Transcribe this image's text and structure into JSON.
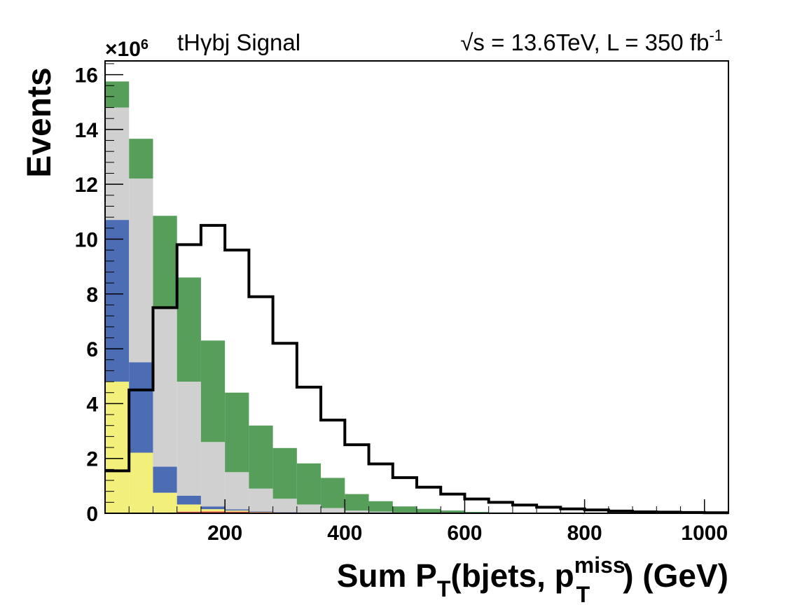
{
  "chart_data": {
    "type": "bar",
    "stacked": true,
    "title": "tHγbj Signal",
    "energy_prefix": "√s",
    "energy_text": " = 13.6TeV, L = 350 fb",
    "lumi_exp": "-1",
    "exponent_label": "×10",
    "exponent_power": "6",
    "ylabel": "Events",
    "xlabel_main": "Sum P",
    "xlabel_sub_T": "T",
    "xlabel_mid": "(bjets, p",
    "xlabel_sup": "miss",
    "xlabel_sub_T2": "T",
    "xlabel_tail": ") (GeV)",
    "xlim": [
      0,
      1040
    ],
    "ylim": [
      0,
      16.5
    ],
    "bin_edges": [
      0,
      40,
      80,
      120,
      160,
      200,
      240,
      280,
      320,
      360,
      400,
      440,
      480,
      520,
      560,
      600,
      640,
      680,
      720,
      760,
      800,
      840,
      880,
      920,
      960,
      1000,
      1040
    ],
    "x_ticks": [
      200,
      400,
      600,
      800,
      1000
    ],
    "y_ticks": [
      0,
      2,
      4,
      6,
      8,
      10,
      12,
      14,
      16
    ],
    "stack_series": [
      {
        "name": "red",
        "color": "#e3544c",
        "values": [
          0,
          0.01,
          0.03,
          0.06,
          0.07,
          0.06,
          0.04,
          0.03,
          0.02,
          0.01,
          0,
          0,
          0,
          0,
          0,
          0,
          0,
          0,
          0,
          0,
          0,
          0,
          0,
          0,
          0,
          0
        ]
      },
      {
        "name": "yellow",
        "color": "#f2f07a",
        "values": [
          4.8,
          2.2,
          0.72,
          0.26,
          0.08,
          0.04,
          0.01,
          0,
          0,
          0,
          0,
          0,
          0,
          0,
          0,
          0,
          0,
          0,
          0,
          0,
          0,
          0,
          0,
          0,
          0,
          0
        ]
      },
      {
        "name": "blue",
        "color": "#4c6cb3",
        "values": [
          5.9,
          3.3,
          0.95,
          0.32,
          0.1,
          0.04,
          0.02,
          0.01,
          0,
          0,
          0,
          0,
          0,
          0,
          0,
          0,
          0,
          0,
          0,
          0,
          0,
          0,
          0,
          0,
          0,
          0
        ]
      },
      {
        "name": "grey",
        "color": "#d0d0d0",
        "values": [
          4.1,
          6.7,
          5.8,
          4.16,
          2.35,
          1.36,
          0.83,
          0.49,
          0.3,
          0.18,
          0.1,
          0.06,
          0.03,
          0.02,
          0.01,
          0,
          0,
          0,
          0,
          0,
          0,
          0,
          0,
          0,
          0,
          0
        ]
      },
      {
        "name": "green",
        "color": "#569e5a",
        "values": [
          0.95,
          1.45,
          3.35,
          3.8,
          3.7,
          2.9,
          2.3,
          1.85,
          1.5,
          1.1,
          0.6,
          0.38,
          0.22,
          0.14,
          0.09,
          0.05,
          0.03,
          0.02,
          0.01,
          0.01,
          0,
          0,
          0,
          0,
          0,
          0
        ]
      }
    ],
    "signal": {
      "name": "tHγbj Signal",
      "color": "#000000",
      "values": [
        1.55,
        4.5,
        7.5,
        9.8,
        10.5,
        9.6,
        7.9,
        6.2,
        4.6,
        3.4,
        2.5,
        1.8,
        1.3,
        0.95,
        0.7,
        0.52,
        0.4,
        0.3,
        0.22,
        0.16,
        0.12,
        0.08,
        0.05,
        0.04,
        0.03,
        0.02
      ]
    }
  }
}
